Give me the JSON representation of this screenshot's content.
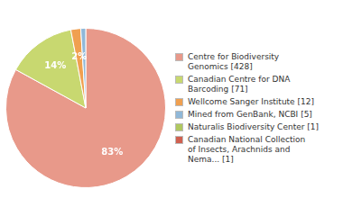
{
  "chart_data": {
    "type": "pie",
    "categories": [
      "Centre for Biodiversity\nGenomics [428]",
      "Canadian Centre for DNA\nBarcoding [71]",
      "Wellcome Sanger Institute [12]",
      "Mined from GenBank, NCBI [5]",
      "Naturalis Biodiversity Center [1]",
      "Canadian National Collection\nof Insects, Arachnids and\nNema... [1]"
    ],
    "values": [
      83,
      14,
      2,
      1,
      0,
      0
    ],
    "value_labels": [
      "83%",
      "14%",
      "2%",
      null,
      null,
      null
    ],
    "colors": [
      "#e8998a",
      "#c8d870",
      "#f0a050",
      "#90b8d8",
      "#b0c860",
      "#d06050"
    ],
    "data_labels": true,
    "legend": "right"
  }
}
